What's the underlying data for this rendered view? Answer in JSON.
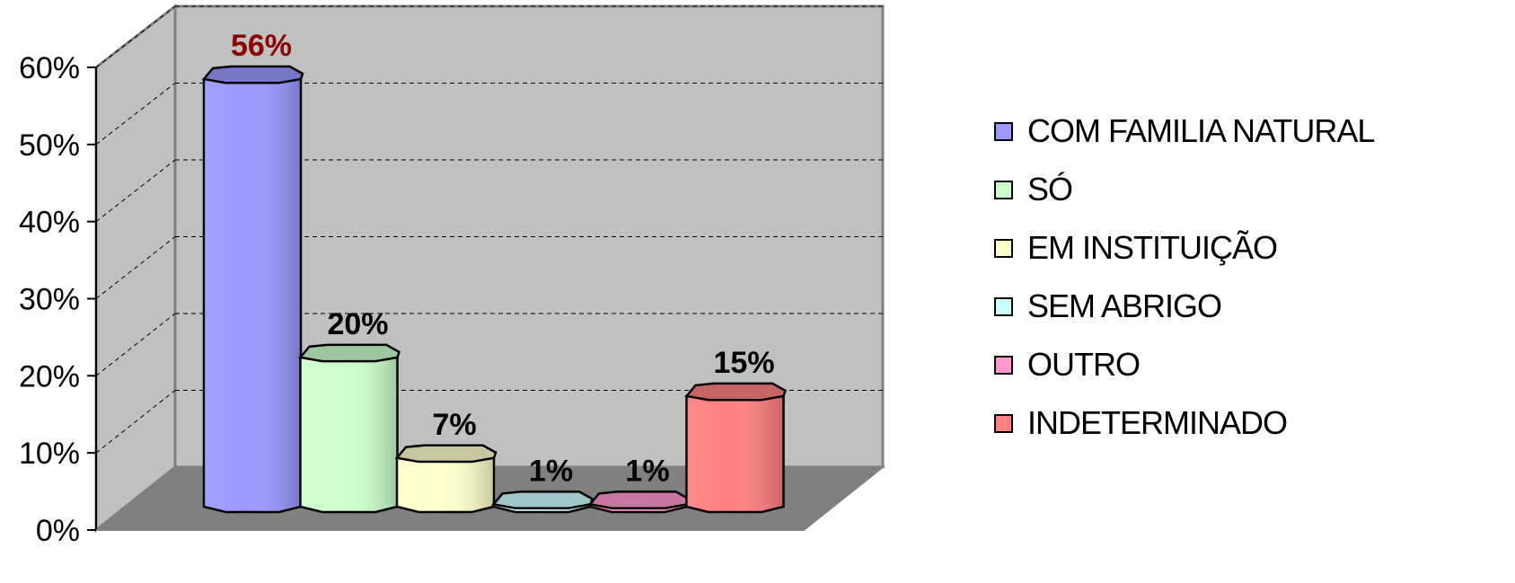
{
  "chart_data": {
    "type": "bar",
    "style": "3d-cylinder",
    "categories": [
      "COM FAMILIA NATURAL",
      "SÓ",
      "EM INSTITUIÇÃO",
      "SEM ABRIGO",
      "OUTRO",
      "INDETERMINADO"
    ],
    "values": [
      56,
      20,
      7,
      1,
      1,
      15
    ],
    "data_labels": [
      "56%",
      "20%",
      "7%",
      "1%",
      "1%",
      "15%"
    ],
    "colors": [
      "#9999FF",
      "#CCFFCC",
      "#FFFFCC",
      "#CCFFFF",
      "#FF99CC",
      "#FF8080"
    ],
    "label_colors": [
      "#8B0000",
      "#000000",
      "#000000",
      "#000000",
      "#000000",
      "#000000"
    ],
    "y_ticks": [
      "0%",
      "10%",
      "20%",
      "30%",
      "40%",
      "50%",
      "60%"
    ],
    "ylim": [
      0,
      60
    ],
    "grid": true,
    "legend_position": "right",
    "title": "",
    "xlabel": "",
    "ylabel": ""
  }
}
